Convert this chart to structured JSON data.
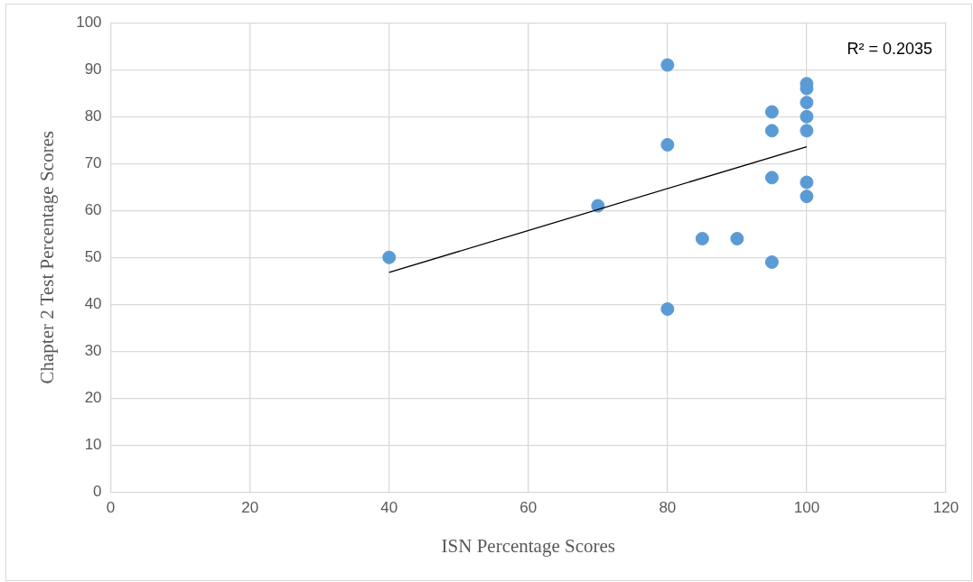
{
  "chart_data": {
    "type": "scatter",
    "xlabel": "ISN Percentage Scores",
    "ylabel": "Chapter 2 Test Percentage Scores",
    "xlim": [
      0,
      120
    ],
    "xticks": [
      0,
      20,
      40,
      60,
      80,
      100,
      120
    ],
    "ylim": [
      0,
      100
    ],
    "yticks": [
      0,
      10,
      20,
      30,
      40,
      50,
      60,
      70,
      80,
      90,
      100
    ],
    "grid": true,
    "legend": false,
    "marker": "circle",
    "series": [
      {
        "color": "#5b9bd5",
        "x": [
          40,
          70,
          80,
          80,
          80,
          85,
          90,
          95,
          95,
          95,
          95,
          100,
          100,
          100,
          100,
          100,
          100,
          100
        ],
        "values": [
          50,
          61,
          91,
          74,
          39,
          54,
          54,
          81,
          77,
          67,
          49,
          87,
          86,
          83,
          80,
          77,
          66,
          63
        ]
      },
      {
        "type": "line",
        "marker": "none",
        "color": "#000000",
        "x": [
          40,
          100
        ],
        "values": [
          46.8,
          73.6
        ]
      }
    ],
    "annotations": [
      "R² = 0.2035"
    ]
  }
}
